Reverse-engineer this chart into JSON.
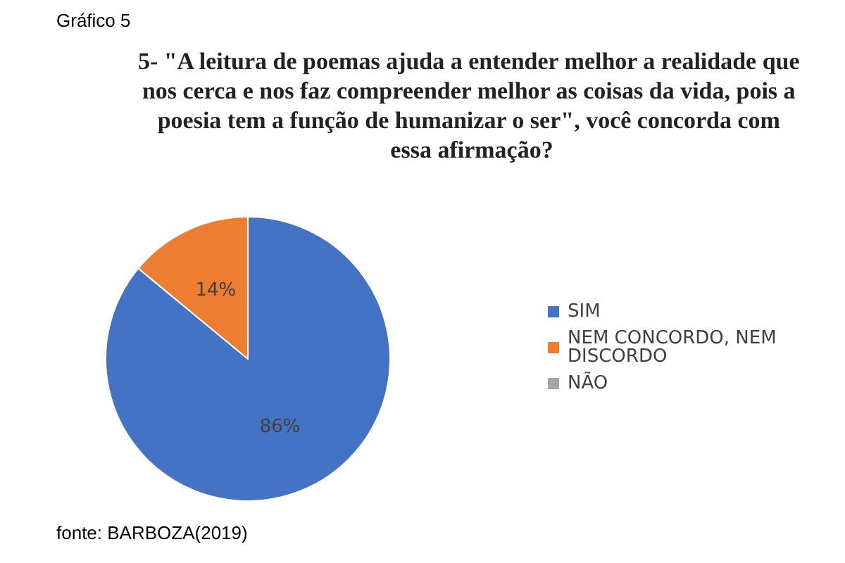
{
  "chart_data": {
    "type": "pie",
    "title": "5- \"A leitura de poemas ajuda a entender melhor a realidade que nos cerca e nos faz compreender melhor as coisas da vida, pois a poesia tem a função de humanizar o ser\", você concorda com essa afirmação?",
    "categories": [
      "SIM",
      "NEM CONCORDO, NEM DISCORDO",
      "NÃO"
    ],
    "values": [
      86,
      14,
      0
    ],
    "colors": [
      "#4472c4",
      "#ed7d31",
      "#a5a5a5"
    ],
    "value_labels": [
      "86%",
      "14%",
      null
    ],
    "legend": "right",
    "annotations": [
      "Gráfico 5",
      "fonte: BARBOZA(2019)"
    ]
  }
}
